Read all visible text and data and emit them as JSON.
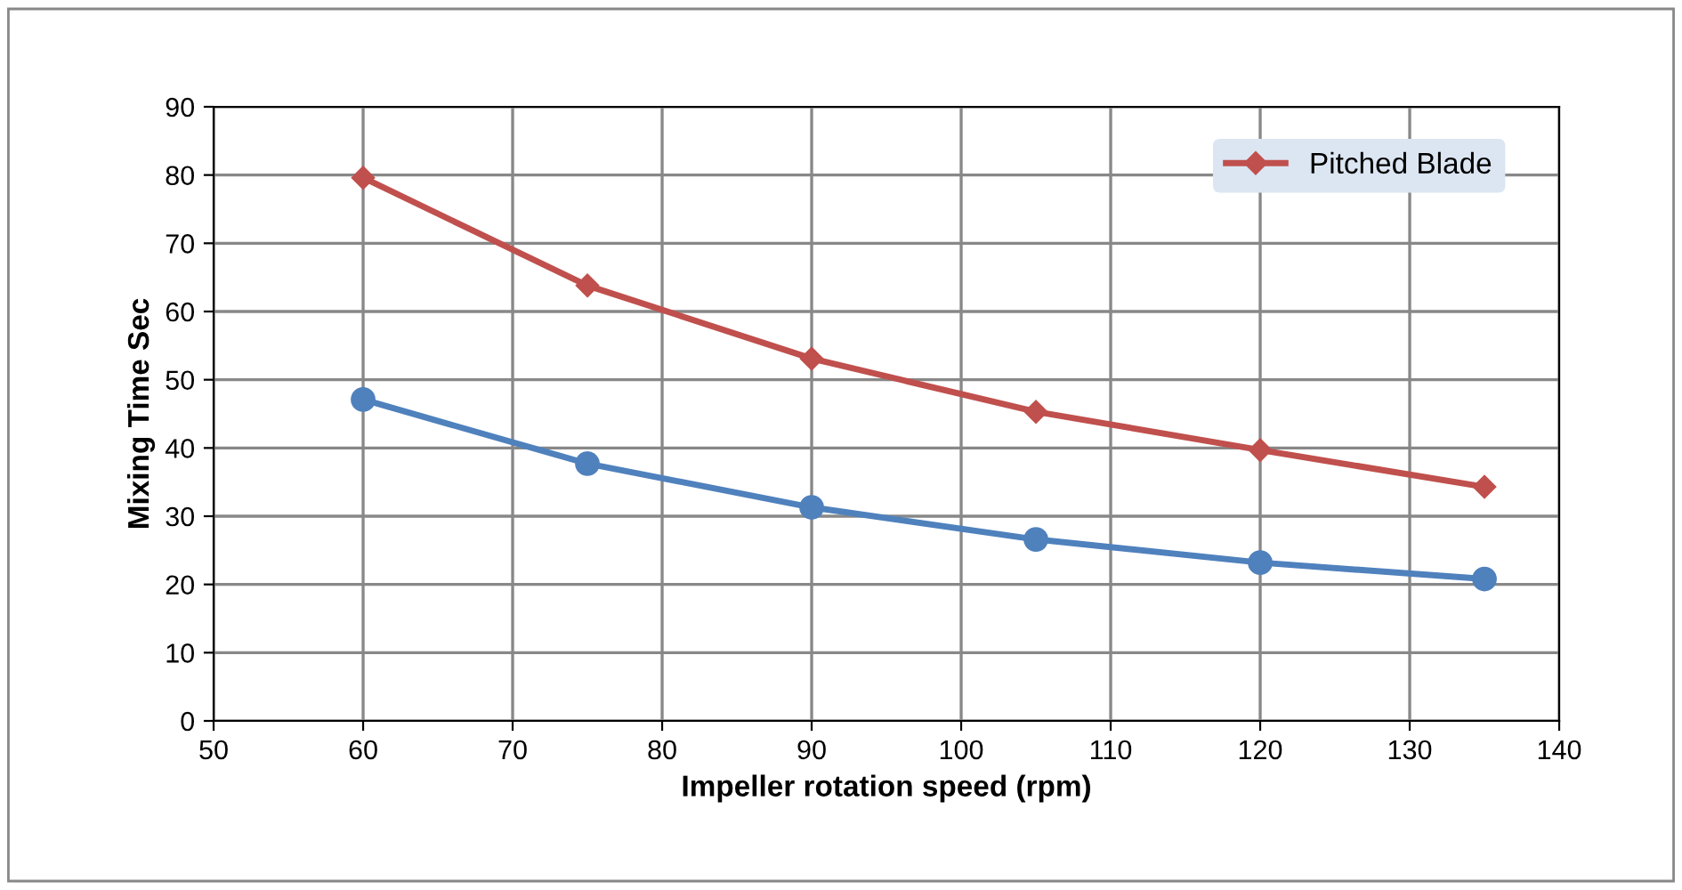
{
  "chart_data": {
    "type": "line",
    "xlabel": "Impeller rotation speed (rpm)",
    "ylabel": "Mixing Time Sec",
    "x": [
      60,
      75,
      90,
      105,
      120,
      135
    ],
    "series": [
      {
        "color": "#4f81bd",
        "marker": "circle",
        "values": [
          47.1,
          37.7,
          31.3,
          26.6,
          23.2,
          20.8
        ]
      },
      {
        "name": "Pitched Blade",
        "color": "#c0504d",
        "marker": "diamond",
        "values": [
          79.6,
          63.8,
          53.1,
          45.3,
          39.7,
          34.3
        ]
      }
    ],
    "xlim": [
      50,
      140
    ],
    "xticks": [
      50,
      60,
      70,
      80,
      90,
      100,
      110,
      120,
      130,
      140
    ],
    "ylim": [
      0,
      90
    ],
    "yticks": [
      0,
      10,
      20,
      30,
      40,
      50,
      60,
      70,
      80,
      90
    ],
    "grid": true,
    "legend": "top right",
    "line_style": "solid"
  }
}
